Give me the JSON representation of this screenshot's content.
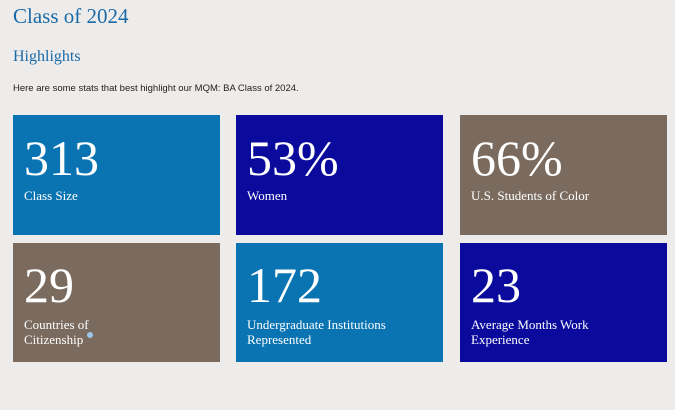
{
  "page": {
    "title": "Class of 2024",
    "section_title": "Highlights",
    "intro": "Here are some stats that best highlight our MQM: BA Class of 2024."
  },
  "colors": {
    "title": "#1a6aa8",
    "blue": "#0a74b3",
    "navy": "#0a0a9c",
    "taupe": "#7a6b5e",
    "background": "#eeecea"
  },
  "stats": [
    {
      "value": "313",
      "label": "Class Size",
      "color": "blue"
    },
    {
      "value": "53%",
      "label": "Women",
      "color": "navy"
    },
    {
      "value": "66%",
      "label": "U.S. Students of Color",
      "color": "taupe"
    },
    {
      "value": "29",
      "label_line1": "Countries of",
      "label_line2": "Citizenship",
      "icon": "info-icon",
      "color": "taupe"
    },
    {
      "value": "172",
      "label_line1": "Undergraduate Institutions",
      "label_line2": "Represented",
      "color": "blue"
    },
    {
      "value": "23",
      "label_line1": "Average Months Work",
      "label_line2": "Experience",
      "color": "navy"
    }
  ]
}
